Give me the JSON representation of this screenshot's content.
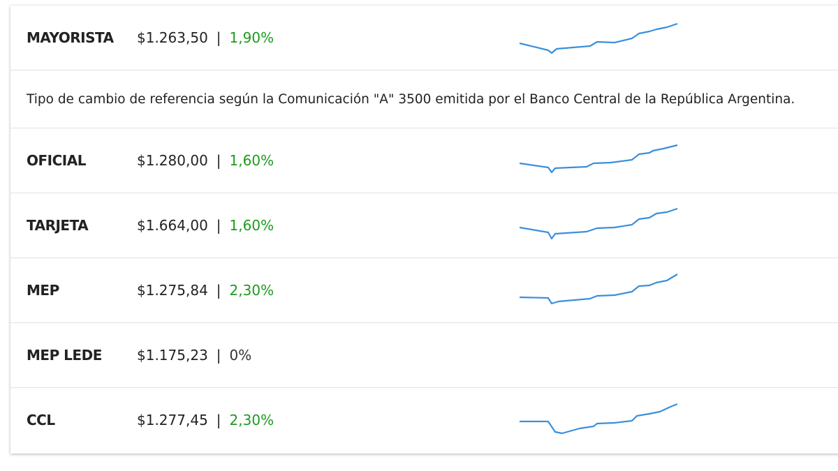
{
  "rows": [
    {
      "label": "MAYORISTA",
      "price": "$1.263,50",
      "separator": "|",
      "change": "1,90%",
      "color": "#1e9a1e"
    },
    {
      "note": "Tipo de cambio de referencia según la Comunicación \"A\" 3500 emitida por el Banco Central de la República Argentina."
    },
    {
      "label": "OFICIAL",
      "price": "$1.280,00",
      "separator": "|",
      "change": "1,60%",
      "color": "#1e9a1e"
    },
    {
      "label": "TARJETA",
      "price": "$1.664,00",
      "separator": "|",
      "change": "1,60%",
      "color": "#1e9a1e"
    },
    {
      "label": "MEP",
      "price": "$1.275,84",
      "separator": "|",
      "change": "2,30%",
      "color": "#1e9a1e"
    },
    {
      "label": "MEP LEDE",
      "price": "$1.175,23",
      "separator": "|",
      "change": "0%",
      "color": "#333333"
    },
    {
      "label": "CCL",
      "price": "$1.277,45",
      "separator": "|",
      "change": "2,30%",
      "color": "#1e9a1e"
    }
  ]
}
